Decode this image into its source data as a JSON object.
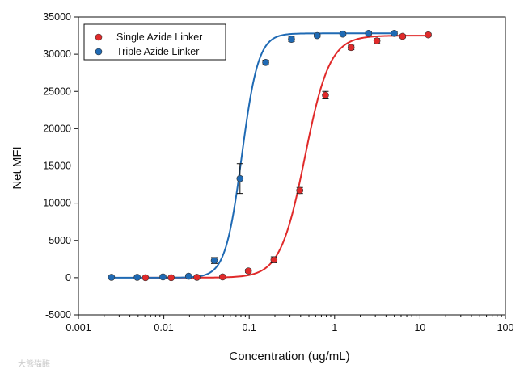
{
  "chart_data": {
    "type": "scatter",
    "title": "",
    "xlabel": "Concentration (ug/mL)",
    "ylabel": "Net MFI",
    "x_scale": "log",
    "xlim": [
      0.001,
      100
    ],
    "ylim": [
      -5000,
      35000
    ],
    "x_ticks": [
      0.001,
      0.01,
      0.1,
      1,
      10,
      100
    ],
    "x_tick_labels": [
      "0.001",
      "0.01",
      "0.1",
      "1",
      "10",
      "100"
    ],
    "y_ticks": [
      -5000,
      0,
      5000,
      10000,
      15000,
      20000,
      25000,
      30000,
      35000
    ],
    "y_tick_labels": [
      "-5000",
      "0",
      "5000",
      "10000",
      "15000",
      "20000",
      "25000",
      "30000",
      "35000"
    ],
    "grid": false,
    "legend_position": "top-left",
    "series": [
      {
        "name": "Single Azide Linker",
        "color": "#e02a2a",
        "x": [
          0.0061,
          0.0122,
          0.0244,
          0.0488,
          0.0977,
          0.195,
          0.391,
          0.781,
          1.56,
          3.13,
          6.25,
          12.5
        ],
        "y": [
          0,
          0,
          50,
          100,
          900,
          2400,
          11700,
          24500,
          30900,
          31800,
          32400,
          32600
        ],
        "error": [
          0,
          0,
          0,
          0,
          200,
          400,
          400,
          500,
          300,
          300,
          200,
          200
        ],
        "fit": {
          "bottom": 0,
          "top": 32500,
          "ec50": 0.45,
          "hill": 3.0
        }
      },
      {
        "name": "Triple Azide Linker",
        "color": "#1f6ab4",
        "x": [
          0.00244,
          0.00488,
          0.00977,
          0.0195,
          0.039,
          0.078,
          0.156,
          0.3125,
          0.625,
          1.25,
          2.5,
          5.0
        ],
        "y": [
          50,
          50,
          100,
          200,
          2300,
          13300,
          28900,
          32000,
          32500,
          32700,
          32800,
          32800
        ],
        "error": [
          0,
          0,
          0,
          0,
          400,
          2000,
          300,
          300,
          200,
          200,
          200,
          200
        ],
        "fit": {
          "bottom": 0,
          "top": 32800,
          "ec50": 0.082,
          "hill": 4.5
        }
      }
    ]
  },
  "watermark": "大熊猫酶"
}
